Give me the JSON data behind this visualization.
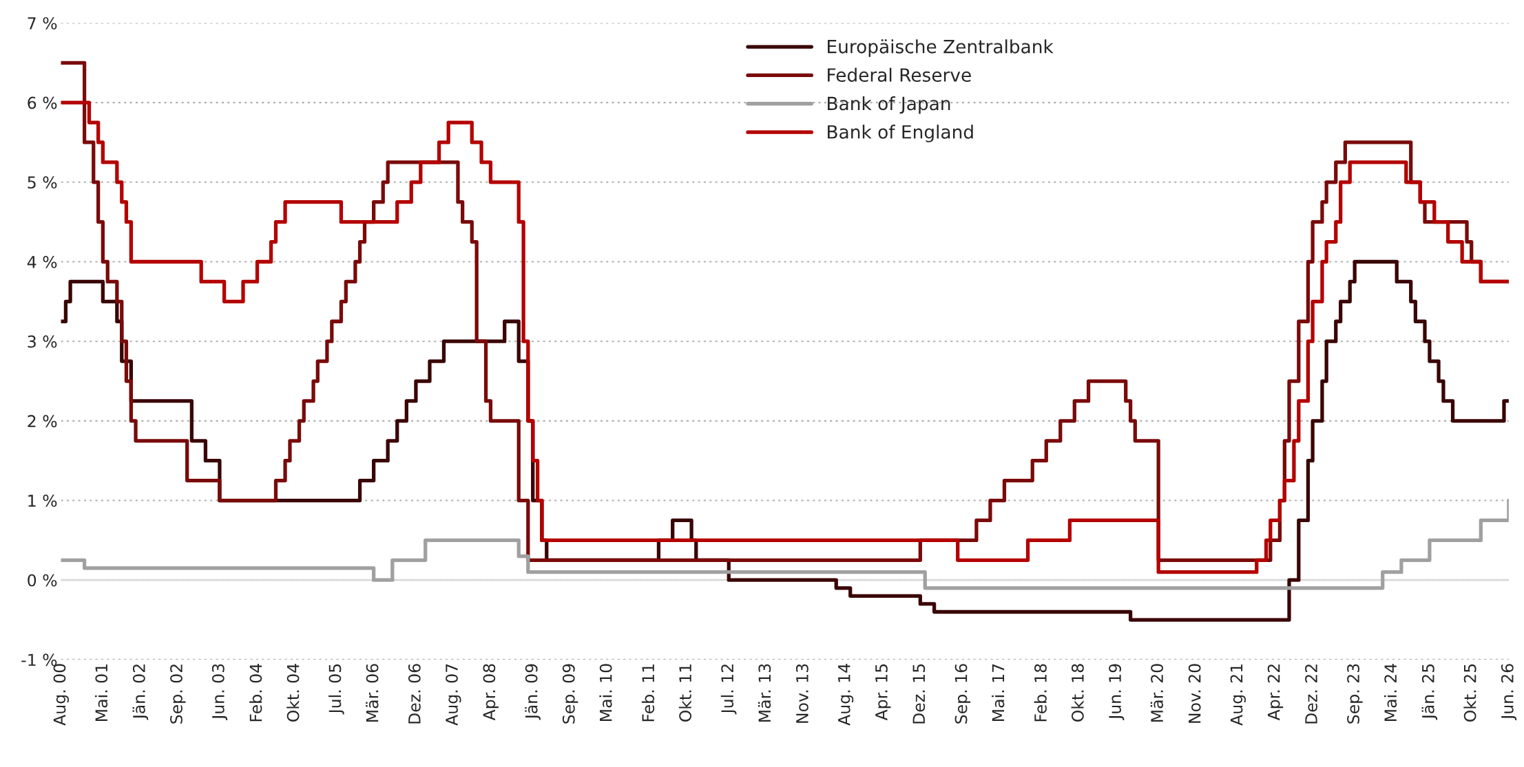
{
  "chart_data": {
    "type": "step",
    "series": [
      {
        "name": "Europäische Zentralbank",
        "color": "#3a0505",
        "x": [
          "2000-08",
          "2000-09",
          "2000-10",
          "2001-05",
          "2001-08",
          "2001-09",
          "2001-11",
          "2002-12",
          "2003-03",
          "2003-06",
          "2005-12",
          "2006-03",
          "2006-06",
          "2006-08",
          "2006-10",
          "2006-12",
          "2007-03",
          "2007-06",
          "2008-07",
          "2008-10",
          "2008-12",
          "2009-01",
          "2009-03",
          "2009-04",
          "2011-04",
          "2011-07",
          "2011-11",
          "2011-12",
          "2012-07",
          "2014-06",
          "2014-09",
          "2015-12",
          "2016-03",
          "2019-09",
          "2022-07",
          "2022-09",
          "2022-11",
          "2022-12",
          "2023-02",
          "2023-03",
          "2023-05",
          "2023-06",
          "2023-08",
          "2023-09",
          "2024-06",
          "2024-09",
          "2024-10",
          "2024-12",
          "2025-01",
          "2025-03",
          "2025-04",
          "2025-06",
          "2026-05",
          "2026-06"
        ],
        "values": [
          3.25,
          3.5,
          3.75,
          3.5,
          3.25,
          2.75,
          2.25,
          1.75,
          1.5,
          1.0,
          1.25,
          1.5,
          1.75,
          2.0,
          2.25,
          2.5,
          2.75,
          3.0,
          3.25,
          2.75,
          2.0,
          1.0,
          0.5,
          0.25,
          0.5,
          0.75,
          0.5,
          0.25,
          0.0,
          -0.1,
          -0.2,
          -0.3,
          -0.4,
          -0.5,
          0.0,
          0.75,
          1.5,
          2.0,
          2.5,
          3.0,
          3.25,
          3.5,
          3.75,
          4.0,
          3.75,
          3.5,
          3.25,
          3.0,
          2.75,
          2.5,
          2.25,
          2.0,
          2.25,
          2.25
        ]
      },
      {
        "name": "Federal Reserve",
        "color": "#7a0a0a",
        "x": [
          "2000-08",
          "2001-01",
          "2001-03",
          "2001-04",
          "2001-05",
          "2001-06",
          "2001-08",
          "2001-09",
          "2001-10",
          "2001-11",
          "2001-12",
          "2002-11",
          "2003-06",
          "2004-06",
          "2004-08",
          "2004-09",
          "2004-11",
          "2004-12",
          "2005-02",
          "2005-03",
          "2005-05",
          "2005-06",
          "2005-08",
          "2005-09",
          "2005-11",
          "2005-12",
          "2006-01",
          "2006-03",
          "2006-05",
          "2006-06",
          "2007-09",
          "2007-10",
          "2007-12",
          "2008-01",
          "2008-03",
          "2008-04",
          "2008-10",
          "2008-12",
          "2015-12",
          "2016-12",
          "2017-03",
          "2017-06",
          "2017-12",
          "2018-03",
          "2018-06",
          "2018-09",
          "2018-12",
          "2019-08",
          "2019-09",
          "2019-10",
          "2020-03",
          "2022-03",
          "2022-05",
          "2022-06",
          "2022-07",
          "2022-09",
          "2022-11",
          "2022-12",
          "2023-02",
          "2023-03",
          "2023-05",
          "2023-07",
          "2024-09",
          "2024-11",
          "2024-12",
          "2025-09",
          "2025-10",
          "2025-12",
          "2026-06"
        ],
        "values": [
          6.5,
          5.5,
          5.0,
          4.5,
          4.0,
          3.75,
          3.5,
          3.0,
          2.5,
          2.0,
          1.75,
          1.25,
          1.0,
          1.25,
          1.5,
          1.75,
          2.0,
          2.25,
          2.5,
          2.75,
          3.0,
          3.25,
          3.5,
          3.75,
          4.0,
          4.25,
          4.5,
          4.75,
          5.0,
          5.25,
          4.75,
          4.5,
          4.25,
          3.0,
          2.25,
          2.0,
          1.0,
          0.25,
          0.5,
          0.75,
          1.0,
          1.25,
          1.5,
          1.75,
          2.0,
          2.25,
          2.5,
          2.25,
          2.0,
          1.75,
          0.25,
          0.5,
          1.0,
          1.75,
          2.5,
          3.25,
          4.0,
          4.5,
          4.75,
          5.0,
          5.25,
          5.5,
          5.0,
          4.75,
          4.5,
          4.25,
          4.0,
          3.75,
          3.75
        ]
      },
      {
        "name": "Bank of Japan",
        "color": "#a0a0a0",
        "x": [
          "2000-08",
          "2001-01",
          "2006-03",
          "2006-07",
          "2007-02",
          "2008-10",
          "2008-12",
          "2016-01",
          "2024-03",
          "2024-07",
          "2025-01",
          "2025-12",
          "2026-06"
        ],
        "values": [
          0.25,
          0.15,
          0.0,
          0.25,
          0.5,
          0.3,
          0.1,
          -0.1,
          0.1,
          0.25,
          0.5,
          0.75,
          1.0
        ]
      },
      {
        "name": "Bank of England",
        "color": "#b40000",
        "x": [
          "2000-08",
          "2001-02",
          "2001-04",
          "2001-05",
          "2001-08",
          "2001-09",
          "2001-10",
          "2001-11",
          "2003-02",
          "2003-07",
          "2003-11",
          "2004-02",
          "2004-05",
          "2004-06",
          "2004-08",
          "2005-08",
          "2006-08",
          "2006-11",
          "2007-01",
          "2007-05",
          "2007-07",
          "2007-12",
          "2008-02",
          "2008-04",
          "2008-10",
          "2008-11",
          "2008-12",
          "2009-01",
          "2009-02",
          "2009-03",
          "2016-08",
          "2017-11",
          "2018-08",
          "2020-03",
          "2021-12",
          "2022-02",
          "2022-03",
          "2022-05",
          "2022-06",
          "2022-08",
          "2022-09",
          "2022-11",
          "2022-12",
          "2023-02",
          "2023-03",
          "2023-05",
          "2023-06",
          "2023-08",
          "2024-08",
          "2024-11",
          "2025-02",
          "2025-05",
          "2025-08",
          "2025-12",
          "2026-06"
        ],
        "values": [
          6.0,
          5.75,
          5.5,
          5.25,
          5.0,
          4.75,
          4.5,
          4.0,
          3.75,
          3.5,
          3.75,
          4.0,
          4.25,
          4.5,
          4.75,
          4.5,
          4.75,
          5.0,
          5.25,
          5.5,
          5.75,
          5.5,
          5.25,
          5.0,
          4.5,
          3.0,
          2.0,
          1.5,
          1.0,
          0.5,
          0.25,
          0.5,
          0.75,
          0.1,
          0.25,
          0.5,
          0.75,
          1.0,
          1.25,
          1.75,
          2.25,
          3.0,
          3.5,
          4.0,
          4.25,
          4.5,
          5.0,
          5.25,
          5.0,
          4.75,
          4.5,
          4.25,
          4.0,
          3.75,
          3.75
        ]
      }
    ],
    "xlim": [
      "2000-08",
      "2026-06"
    ],
    "xticks": [
      {
        "value": "2000-08",
        "label": "Aug. 00"
      },
      {
        "value": "2001-05",
        "label": "Mai. 01"
      },
      {
        "value": "2002-01",
        "label": "Jän. 02"
      },
      {
        "value": "2002-09",
        "label": "Sep. 02"
      },
      {
        "value": "2003-06",
        "label": "Jun. 03"
      },
      {
        "value": "2004-02",
        "label": "Feb. 04"
      },
      {
        "value": "2004-10",
        "label": "Okt. 04"
      },
      {
        "value": "2005-07",
        "label": "Jul. 05"
      },
      {
        "value": "2006-03",
        "label": "Mär. 06"
      },
      {
        "value": "2006-12",
        "label": "Dez. 06"
      },
      {
        "value": "2007-08",
        "label": "Aug. 07"
      },
      {
        "value": "2008-04",
        "label": "Apr. 08"
      },
      {
        "value": "2009-01",
        "label": "Jän. 09"
      },
      {
        "value": "2009-09",
        "label": "Sep. 09"
      },
      {
        "value": "2010-05",
        "label": "Mai. 10"
      },
      {
        "value": "2011-02",
        "label": "Feb. 11"
      },
      {
        "value": "2011-10",
        "label": "Okt. 11"
      },
      {
        "value": "2012-07",
        "label": "Jul. 12"
      },
      {
        "value": "2013-03",
        "label": "Mär. 13"
      },
      {
        "value": "2013-11",
        "label": "Nov. 13"
      },
      {
        "value": "2014-08",
        "label": "Aug. 14"
      },
      {
        "value": "2015-04",
        "label": "Apr. 15"
      },
      {
        "value": "2015-12",
        "label": "Dez. 15"
      },
      {
        "value": "2016-09",
        "label": "Sep. 16"
      },
      {
        "value": "2017-05",
        "label": "Mai. 17"
      },
      {
        "value": "2018-02",
        "label": "Feb. 18"
      },
      {
        "value": "2018-10",
        "label": "Okt. 18"
      },
      {
        "value": "2019-06",
        "label": "Jun. 19"
      },
      {
        "value": "2020-03",
        "label": "Mär. 20"
      },
      {
        "value": "2020-11",
        "label": "Nov. 20"
      },
      {
        "value": "2021-08",
        "label": "Aug. 21"
      },
      {
        "value": "2022-04",
        "label": "Apr. 22"
      },
      {
        "value": "2022-12",
        "label": "Dez. 22"
      },
      {
        "value": "2023-09",
        "label": "Sep. 23"
      },
      {
        "value": "2024-05",
        "label": "Mai. 24"
      },
      {
        "value": "2025-01",
        "label": "Jän. 25"
      },
      {
        "value": "2025-10",
        "label": "Okt. 25"
      },
      {
        "value": "2026-06",
        "label": "Jun. 26"
      }
    ],
    "ylim": [
      -1,
      7
    ],
    "yticks": [
      {
        "value": -1,
        "label": "-1 %"
      },
      {
        "value": 0,
        "label": "0 %"
      },
      {
        "value": 1,
        "label": "1 %"
      },
      {
        "value": 2,
        "label": "2 %"
      },
      {
        "value": 3,
        "label": "3 %"
      },
      {
        "value": 4,
        "label": "4 %"
      },
      {
        "value": 5,
        "label": "5 %"
      },
      {
        "value": 6,
        "label": "6 %"
      },
      {
        "value": 7,
        "label": "7 %"
      }
    ],
    "ref_lines": [
      {
        "axis": "y",
        "value": 0,
        "color": "#d9d9d9",
        "line_style": "solid"
      }
    ],
    "grid": "y",
    "legend": "top",
    "line_style": "solid"
  }
}
